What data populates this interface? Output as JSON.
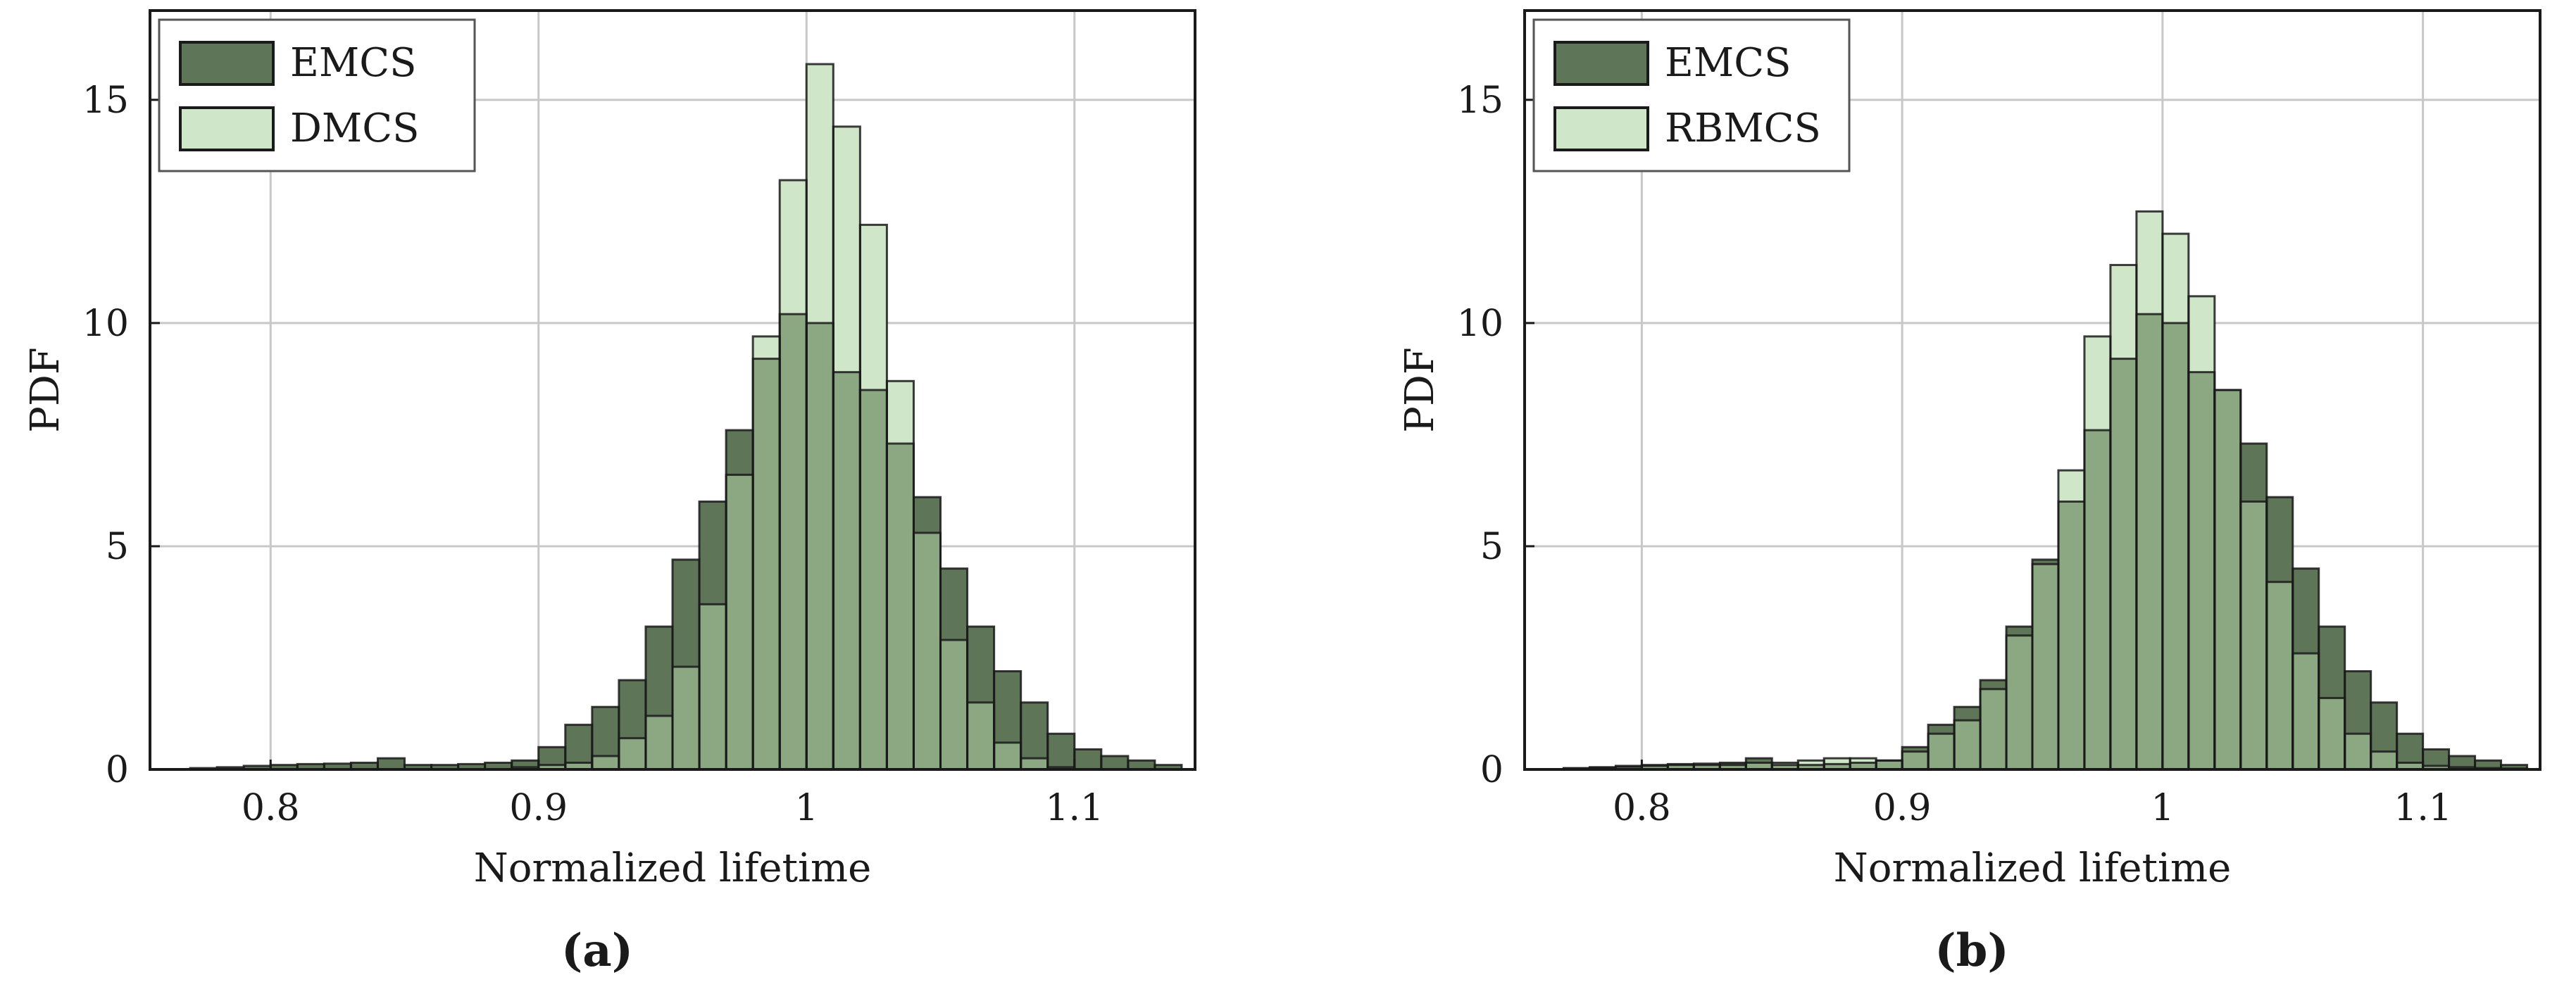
{
  "colors": {
    "series_dark": "#5e7558",
    "series_light": "#cfe6c9",
    "overlap": "#8ca883",
    "grid": "#c8c8c8",
    "frame": "#1a1a1a"
  },
  "chart_data": [
    {
      "type": "histogram",
      "panel_label": "(a)",
      "xlabel": "Normalized lifetime",
      "ylabel": "PDF",
      "xlim": [
        0.755,
        1.145
      ],
      "ylim": [
        0,
        17
      ],
      "xticks": [
        0.8,
        0.9,
        1,
        1.1
      ],
      "xtick_labels": [
        "0.8",
        "0.9",
        "1",
        "1.1"
      ],
      "yticks": [
        0,
        5,
        10,
        15
      ],
      "ytick_labels": [
        "0",
        "5",
        "10",
        "15"
      ],
      "grid": true,
      "legend_position": "top-left",
      "bin_edges": [
        0.77,
        0.78,
        0.79,
        0.8,
        0.81,
        0.82,
        0.83,
        0.84,
        0.85,
        0.86,
        0.87,
        0.88,
        0.89,
        0.9,
        0.91,
        0.92,
        0.93,
        0.94,
        0.95,
        0.96,
        0.97,
        0.98,
        0.99,
        1.0,
        1.01,
        1.02,
        1.03,
        1.04,
        1.05,
        1.06,
        1.07,
        1.08,
        1.09,
        1.1,
        1.11,
        1.12,
        1.13,
        1.14
      ],
      "series": [
        {
          "name": "EMCS",
          "color": "#5e7558",
          "values": [
            0.03,
            0.05,
            0.08,
            0.1,
            0.12,
            0.13,
            0.15,
            0.25,
            0.1,
            0.1,
            0.12,
            0.15,
            0.2,
            0.5,
            1.0,
            1.4,
            2.0,
            3.2,
            4.7,
            6.0,
            7.6,
            9.2,
            10.2,
            10.0,
            8.9,
            8.5,
            7.3,
            6.1,
            4.5,
            3.2,
            2.2,
            1.5,
            0.8,
            0.45,
            0.3,
            0.2,
            0.1
          ]
        },
        {
          "name": "DMCS",
          "color": "#cfe6c9",
          "values": [
            0,
            0,
            0,
            0,
            0,
            0,
            0,
            0,
            0,
            0,
            0,
            0,
            0.05,
            0.1,
            0.15,
            0.3,
            0.7,
            1.2,
            2.3,
            3.7,
            6.6,
            9.7,
            13.2,
            15.8,
            14.4,
            12.2,
            8.7,
            5.3,
            2.9,
            1.5,
            0.6,
            0.25,
            0.05,
            0,
            0,
            0,
            0
          ]
        }
      ]
    },
    {
      "type": "histogram",
      "panel_label": "(b)",
      "xlabel": "Normalized lifetime",
      "ylabel": "PDF",
      "xlim": [
        0.755,
        1.145
      ],
      "ylim": [
        0,
        17
      ],
      "xticks": [
        0.8,
        0.9,
        1,
        1.1
      ],
      "xtick_labels": [
        "0.8",
        "0.9",
        "1",
        "1.1"
      ],
      "yticks": [
        0,
        5,
        10,
        15
      ],
      "ytick_labels": [
        "0",
        "5",
        "10",
        "15"
      ],
      "grid": true,
      "legend_position": "top-left",
      "bin_edges": [
        0.77,
        0.78,
        0.79,
        0.8,
        0.81,
        0.82,
        0.83,
        0.84,
        0.85,
        0.86,
        0.87,
        0.88,
        0.89,
        0.9,
        0.91,
        0.92,
        0.93,
        0.94,
        0.95,
        0.96,
        0.97,
        0.98,
        0.99,
        1.0,
        1.01,
        1.02,
        1.03,
        1.04,
        1.05,
        1.06,
        1.07,
        1.08,
        1.09,
        1.1,
        1.11,
        1.12,
        1.13,
        1.14
      ],
      "series": [
        {
          "name": "EMCS",
          "color": "#5e7558",
          "values": [
            0.03,
            0.05,
            0.08,
            0.1,
            0.12,
            0.13,
            0.15,
            0.25,
            0.1,
            0.1,
            0.12,
            0.15,
            0.2,
            0.5,
            1.0,
            1.4,
            2.0,
            3.2,
            4.7,
            6.0,
            7.6,
            9.2,
            10.2,
            10.0,
            8.9,
            8.5,
            7.3,
            6.1,
            4.5,
            3.2,
            2.2,
            1.5,
            0.8,
            0.45,
            0.3,
            0.2,
            0.1
          ]
        },
        {
          "name": "RBMCS",
          "color": "#cfe6c9",
          "values": [
            0.02,
            0.04,
            0.06,
            0.08,
            0.1,
            0.1,
            0.1,
            0.15,
            0.15,
            0.2,
            0.25,
            0.25,
            0.2,
            0.4,
            0.8,
            1.1,
            1.8,
            3.0,
            4.6,
            6.7,
            9.7,
            11.3,
            12.5,
            12.0,
            10.6,
            8.5,
            6.0,
            4.2,
            2.6,
            1.6,
            0.8,
            0.4,
            0.15,
            0.08,
            0.05,
            0.03,
            0.02
          ]
        }
      ]
    }
  ]
}
